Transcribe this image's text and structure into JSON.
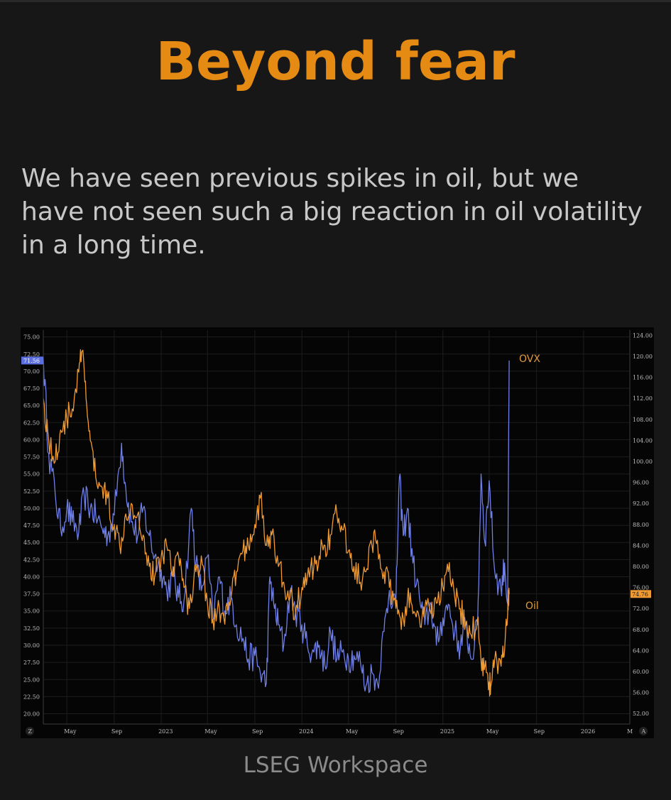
{
  "page": {
    "title": "Beyond fear",
    "subtitle": "We have seen previous spikes in oil, but we have not seen such a big reaction in oil volatility in a long time.",
    "source": "LSEG Workspace"
  },
  "chart_data": {
    "type": "line",
    "title": "",
    "xlabel": "",
    "ylabel": "",
    "x_ticks": [
      "May",
      "Sep",
      "2023",
      "May",
      "Sep",
      "2024",
      "May",
      "Sep",
      "2025",
      "May",
      "Sep",
      "2026",
      "M"
    ],
    "x_range": [
      "2022-03-01",
      "2026-05-01"
    ],
    "y_left": {
      "series": "OVX",
      "ylim": [
        18.5,
        76
      ],
      "ticks": [
        "75.00",
        "72.50",
        "70.00",
        "67.50",
        "65.00",
        "62.50",
        "60.00",
        "57.50",
        "55.00",
        "52.50",
        "50.00",
        "47.50",
        "45.00",
        "42.50",
        "40.00",
        "37.50",
        "35.00",
        "32.50",
        "30.00",
        "27.50",
        "25.00",
        "22.50",
        "20.00"
      ],
      "last_value": "71.56"
    },
    "y_right": {
      "series": "Oil",
      "ylim": [
        50,
        125
      ],
      "ticks": [
        "124.00",
        "120.00",
        "116.00",
        "112.00",
        "108.00",
        "104.00",
        "100.00",
        "96.00",
        "92.00",
        "88.00",
        "84.00",
        "80.00",
        "76.00",
        "72.00",
        "68.00",
        "64.00",
        "60.00",
        "56.00",
        "52.00"
      ],
      "last_value": "74.76"
    },
    "corner_buttons": {
      "left": "Z",
      "right": "A"
    },
    "grid": true,
    "series": [
      {
        "name": "OVX",
        "axis": "left",
        "color": "#6f7fe8",
        "points": [
          [
            "2022-03-01",
            72.0
          ],
          [
            "2022-03-15",
            58.0
          ],
          [
            "2022-04-01",
            52.0
          ],
          [
            "2022-04-15",
            47.0
          ],
          [
            "2022-05-01",
            50.0
          ],
          [
            "2022-05-15",
            48.0
          ],
          [
            "2022-06-01",
            46.5
          ],
          [
            "2022-06-15",
            52.0
          ],
          [
            "2022-07-01",
            50.0
          ],
          [
            "2022-07-15",
            49.0
          ],
          [
            "2022-08-01",
            47.0
          ],
          [
            "2022-08-15",
            46.0
          ],
          [
            "2022-09-01",
            49.0
          ],
          [
            "2022-09-20",
            59.5
          ],
          [
            "2022-10-01",
            53.0
          ],
          [
            "2022-10-15",
            48.0
          ],
          [
            "2022-11-01",
            46.0
          ],
          [
            "2022-11-15",
            50.0
          ],
          [
            "2022-12-01",
            46.0
          ],
          [
            "2022-12-15",
            43.0
          ],
          [
            "2023-01-01",
            41.0
          ],
          [
            "2023-01-15",
            38.0
          ],
          [
            "2023-02-01",
            40.0
          ],
          [
            "2023-02-15",
            37.0
          ],
          [
            "2023-03-01",
            36.5
          ],
          [
            "2023-03-20",
            50.0
          ],
          [
            "2023-04-01",
            42.0
          ],
          [
            "2023-04-15",
            38.0
          ],
          [
            "2023-05-01",
            43.0
          ],
          [
            "2023-05-15",
            34.0
          ],
          [
            "2023-06-01",
            40.0
          ],
          [
            "2023-06-15",
            35.0
          ],
          [
            "2023-07-01",
            37.0
          ],
          [
            "2023-07-15",
            33.0
          ],
          [
            "2023-08-01",
            31.0
          ],
          [
            "2023-08-15",
            28.0
          ],
          [
            "2023-09-01",
            28.5
          ],
          [
            "2023-09-15",
            26.0
          ],
          [
            "2023-10-01",
            24.5
          ],
          [
            "2023-10-10",
            40.0
          ],
          [
            "2023-10-20",
            36.0
          ],
          [
            "2023-11-01",
            33.0
          ],
          [
            "2023-11-15",
            30.0
          ],
          [
            "2023-12-01",
            38.0
          ],
          [
            "2023-12-15",
            35.0
          ],
          [
            "2024-01-01",
            33.0
          ],
          [
            "2024-01-15",
            30.0
          ],
          [
            "2024-02-01",
            29.0
          ],
          [
            "2024-02-15",
            30.0
          ],
          [
            "2024-03-01",
            27.0
          ],
          [
            "2024-03-15",
            32.0
          ],
          [
            "2024-04-01",
            28.0
          ],
          [
            "2024-04-15",
            29.0
          ],
          [
            "2024-05-01",
            28.0
          ],
          [
            "2024-05-15",
            28.5
          ],
          [
            "2024-06-01",
            27.5
          ],
          [
            "2024-06-15",
            24.0
          ],
          [
            "2024-07-01",
            26.0
          ],
          [
            "2024-07-15",
            24.5
          ],
          [
            "2024-08-01",
            32.0
          ],
          [
            "2024-08-15",
            38.0
          ],
          [
            "2024-09-01",
            36.0
          ],
          [
            "2024-09-10",
            54.5
          ],
          [
            "2024-09-20",
            46.0
          ],
          [
            "2024-10-01",
            50.0
          ],
          [
            "2024-10-15",
            42.0
          ],
          [
            "2024-11-01",
            37.0
          ],
          [
            "2024-11-15",
            33.0
          ],
          [
            "2024-12-01",
            36.0
          ],
          [
            "2024-12-15",
            30.0
          ],
          [
            "2025-01-01",
            34.0
          ],
          [
            "2025-01-15",
            36.0
          ],
          [
            "2025-02-01",
            32.0
          ],
          [
            "2025-02-15",
            29.5
          ],
          [
            "2025-03-01",
            33.0
          ],
          [
            "2025-03-15",
            28.0
          ],
          [
            "2025-04-01",
            33.0
          ],
          [
            "2025-04-10",
            55.0
          ],
          [
            "2025-04-20",
            45.0
          ],
          [
            "2025-05-01",
            54.0
          ],
          [
            "2025-05-15",
            41.0
          ],
          [
            "2025-06-01",
            38.0
          ],
          [
            "2025-06-10",
            42.0
          ],
          [
            "2025-06-18",
            36.0
          ],
          [
            "2025-06-22",
            71.56
          ]
        ]
      },
      {
        "name": "Oil",
        "axis": "right",
        "color": "#f09a34",
        "points": [
          [
            "2022-03-01",
            112.0
          ],
          [
            "2022-03-15",
            104.0
          ],
          [
            "2022-04-01",
            100.0
          ],
          [
            "2022-04-15",
            106.0
          ],
          [
            "2022-05-01",
            108.0
          ],
          [
            "2022-05-15",
            110.0
          ],
          [
            "2022-06-01",
            117.0
          ],
          [
            "2022-06-10",
            121.0
          ],
          [
            "2022-06-20",
            112.0
          ],
          [
            "2022-07-01",
            104.0
          ],
          [
            "2022-07-15",
            97.0
          ],
          [
            "2022-08-01",
            95.0
          ],
          [
            "2022-08-15",
            93.0
          ],
          [
            "2022-09-01",
            88.0
          ],
          [
            "2022-09-15",
            84.0
          ],
          [
            "2022-10-01",
            90.0
          ],
          [
            "2022-10-15",
            92.0
          ],
          [
            "2022-11-01",
            90.0
          ],
          [
            "2022-11-15",
            86.0
          ],
          [
            "2022-12-01",
            80.0
          ],
          [
            "2022-12-15",
            78.0
          ],
          [
            "2023-01-01",
            82.0
          ],
          [
            "2023-01-15",
            84.0
          ],
          [
            "2023-02-01",
            80.0
          ],
          [
            "2023-02-15",
            82.0
          ],
          [
            "2023-03-01",
            76.0
          ],
          [
            "2023-03-15",
            72.0
          ],
          [
            "2023-04-01",
            79.0
          ],
          [
            "2023-04-15",
            82.0
          ],
          [
            "2023-05-01",
            73.0
          ],
          [
            "2023-05-15",
            70.0
          ],
          [
            "2023-06-01",
            72.0
          ],
          [
            "2023-06-15",
            69.0
          ],
          [
            "2023-07-01",
            74.0
          ],
          [
            "2023-07-15",
            79.0
          ],
          [
            "2023-08-01",
            83.0
          ],
          [
            "2023-08-15",
            84.0
          ],
          [
            "2023-09-01",
            88.0
          ],
          [
            "2023-09-15",
            93.0
          ],
          [
            "2023-10-01",
            84.0
          ],
          [
            "2023-10-15",
            86.0
          ],
          [
            "2023-11-01",
            80.0
          ],
          [
            "2023-11-15",
            77.0
          ],
          [
            "2023-12-01",
            74.0
          ],
          [
            "2023-12-15",
            71.0
          ],
          [
            "2024-01-01",
            76.0
          ],
          [
            "2024-01-15",
            78.0
          ],
          [
            "2024-02-01",
            80.0
          ],
          [
            "2024-02-15",
            82.0
          ],
          [
            "2024-03-01",
            84.0
          ],
          [
            "2024-03-15",
            86.0
          ],
          [
            "2024-04-01",
            90.0
          ],
          [
            "2024-04-15",
            87.0
          ],
          [
            "2024-05-01",
            83.0
          ],
          [
            "2024-05-15",
            80.0
          ],
          [
            "2024-06-01",
            77.0
          ],
          [
            "2024-06-15",
            79.0
          ],
          [
            "2024-07-01",
            84.0
          ],
          [
            "2024-07-15",
            85.0
          ],
          [
            "2024-08-01",
            79.0
          ],
          [
            "2024-08-15",
            76.0
          ],
          [
            "2024-09-01",
            72.0
          ],
          [
            "2024-09-15",
            68.0
          ],
          [
            "2024-10-01",
            74.0
          ],
          [
            "2024-10-15",
            71.0
          ],
          [
            "2024-11-01",
            70.0
          ],
          [
            "2024-11-15",
            72.0
          ],
          [
            "2024-12-01",
            71.0
          ],
          [
            "2024-12-15",
            73.0
          ],
          [
            "2025-01-01",
            76.0
          ],
          [
            "2025-01-15",
            79.0
          ],
          [
            "2025-02-01",
            74.0
          ],
          [
            "2025-02-15",
            72.0
          ],
          [
            "2025-03-01",
            69.0
          ],
          [
            "2025-03-15",
            67.0
          ],
          [
            "2025-04-01",
            70.0
          ],
          [
            "2025-04-10",
            62.0
          ],
          [
            "2025-04-20",
            61.0
          ],
          [
            "2025-05-01",
            58.0
          ],
          [
            "2025-05-05",
            57.0
          ],
          [
            "2025-05-15",
            62.0
          ],
          [
            "2025-06-01",
            61.0
          ],
          [
            "2025-06-10",
            64.0
          ],
          [
            "2025-06-18",
            71.0
          ],
          [
            "2025-06-22",
            74.76
          ]
        ]
      }
    ]
  }
}
